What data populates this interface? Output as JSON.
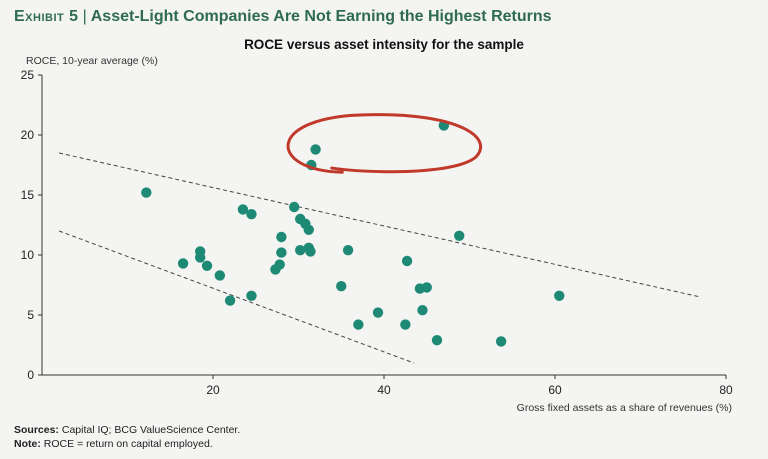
{
  "exhibit": {
    "label": "Exhibit 5",
    "title": "Asset-Light Companies Are Not Earning the Highest Returns"
  },
  "chart_data": {
    "type": "scatter",
    "title": "ROCE versus asset intensity for the sample",
    "xlabel": "Gross fixed assets as a share of revenues (%)",
    "ylabel": "ROCE, 10-year average (%)",
    "xlim": [
      0,
      80
    ],
    "ylim": [
      0,
      25
    ],
    "xticks": [
      "20",
      "40",
      "60",
      "80"
    ],
    "yticks": [
      "0",
      "5",
      "10",
      "15",
      "20",
      "25"
    ],
    "point_color": "#1e8a76",
    "highlight_color": "#c0392b",
    "points": [
      {
        "x": 12.2,
        "y": 15.2
      },
      {
        "x": 16.5,
        "y": 9.3
      },
      {
        "x": 18.5,
        "y": 10.3
      },
      {
        "x": 18.5,
        "y": 9.8
      },
      {
        "x": 19.3,
        "y": 9.1
      },
      {
        "x": 20.8,
        "y": 8.3
      },
      {
        "x": 22.0,
        "y": 6.2
      },
      {
        "x": 23.5,
        "y": 13.8
      },
      {
        "x": 24.5,
        "y": 13.4
      },
      {
        "x": 24.5,
        "y": 6.6
      },
      {
        "x": 27.3,
        "y": 8.8
      },
      {
        "x": 27.8,
        "y": 9.2
      },
      {
        "x": 28.0,
        "y": 11.5
      },
      {
        "x": 28.0,
        "y": 10.2
      },
      {
        "x": 29.5,
        "y": 14.0
      },
      {
        "x": 30.2,
        "y": 13.0
      },
      {
        "x": 30.2,
        "y": 10.4
      },
      {
        "x": 30.8,
        "y": 12.6
      },
      {
        "x": 31.2,
        "y": 12.1
      },
      {
        "x": 31.2,
        "y": 10.6
      },
      {
        "x": 31.4,
        "y": 10.3
      },
      {
        "x": 31.5,
        "y": 17.5
      },
      {
        "x": 32.0,
        "y": 18.8
      },
      {
        "x": 35.0,
        "y": 7.4
      },
      {
        "x": 35.8,
        "y": 10.4
      },
      {
        "x": 37.0,
        "y": 4.2
      },
      {
        "x": 39.3,
        "y": 5.2
      },
      {
        "x": 42.7,
        "y": 9.5
      },
      {
        "x": 42.5,
        "y": 4.2
      },
      {
        "x": 44.2,
        "y": 7.2
      },
      {
        "x": 44.5,
        "y": 5.4
      },
      {
        "x": 45.0,
        "y": 7.3
      },
      {
        "x": 46.2,
        "y": 2.9
      },
      {
        "x": 47.0,
        "y": 20.8
      },
      {
        "x": 48.8,
        "y": 11.6
      },
      {
        "x": 53.7,
        "y": 2.8
      },
      {
        "x": 60.5,
        "y": 6.6
      }
    ],
    "trend_lines": [
      {
        "x": [
          2,
          77
        ],
        "y": [
          18.5,
          6.5
        ]
      },
      {
        "x": [
          2,
          43.5
        ],
        "y": [
          12.0,
          1.0
        ]
      }
    ],
    "highlight": {
      "cx": 39.5,
      "cy": 19.2,
      "rx": 12.5,
      "ry": 2.3
    }
  },
  "footer": {
    "sources_label": "Sources:",
    "sources_text": " Capital IQ; BCG ValueScience Center.",
    "note_label": "Note:",
    "note_text": " ROCE = return on capital employed."
  }
}
